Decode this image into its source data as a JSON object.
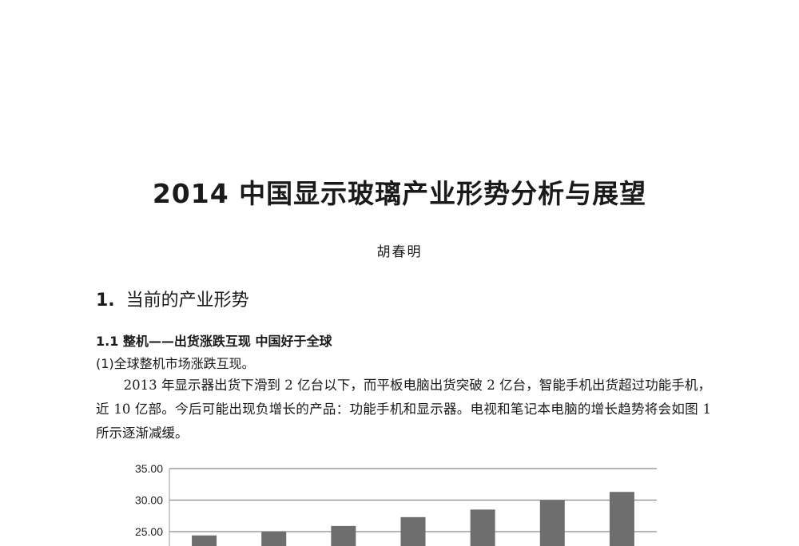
{
  "document": {
    "title": "2014 中国显示玻璃产业形势分析与展望",
    "author": "胡春明",
    "section_number": "1.",
    "section_title": "当前的产业形势",
    "subsection_title": "1.1 整机——出货涨跌互现  中国好于全球",
    "subheading": "(1)全球整机市场涨跌互现。",
    "paragraph": "2013 年显示器出货下滑到 2 亿台以下，而平板电脑出货突破 2 亿台，智能手机出货超过功能手机，近 10 亿部。今后可能出现负增长的产品：功能手机和显示器。电视和笔记本电脑的增长趋势将会如图 1 所示逐渐减缓。"
  },
  "chart_data": {
    "type": "bar",
    "values": [
      24.4,
      25.0,
      25.9,
      27.3,
      28.5,
      30.0,
      31.3
    ],
    "ytick_labels": [
      "35.00",
      "30.00",
      "25.00"
    ],
    "yticks": [
      35,
      30,
      25
    ],
    "ylim_visible": [
      25,
      35
    ],
    "grid": true,
    "bar_color": "#6e6e6e"
  }
}
